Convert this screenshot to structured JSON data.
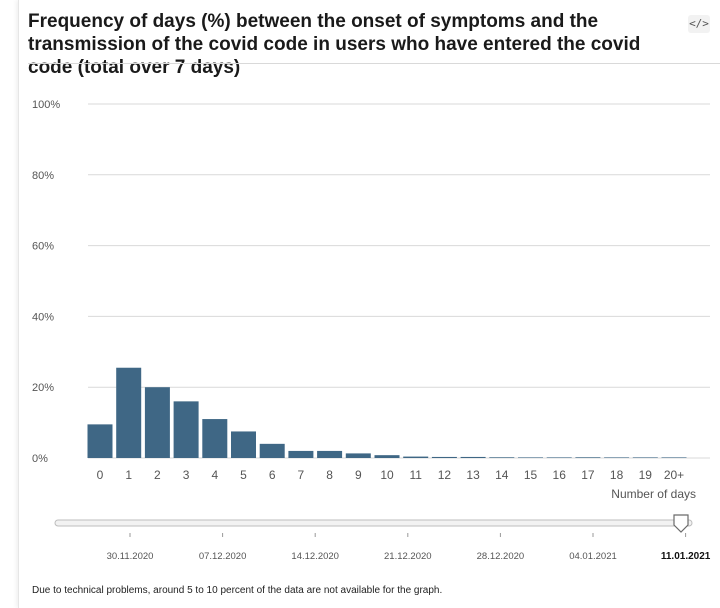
{
  "title": "Frequency of days (%) between the onset of symptoms and the transmission of the covid code in users who have entered the covid code (total over 7 days)",
  "embed_icon": "embed-code-icon",
  "embed_label": "</>",
  "footnote": "Due to technical problems, around 5 to 10 percent of the data are not available for the graph.",
  "colors": {
    "bar": "#3f6785",
    "grid": "#d9d9d9",
    "axis_text": "#555555",
    "slider_track": "#f2f2f2",
    "slider_border": "#bdbdbd"
  },
  "chart_data": {
    "type": "bar",
    "categories": [
      "0",
      "1",
      "2",
      "3",
      "4",
      "5",
      "6",
      "7",
      "8",
      "9",
      "10",
      "11",
      "12",
      "13",
      "14",
      "15",
      "16",
      "17",
      "18",
      "19",
      "20+"
    ],
    "values": [
      9.5,
      25.5,
      20.0,
      16.0,
      11.0,
      7.5,
      4.0,
      2.0,
      2.0,
      1.3,
      0.8,
      0.4,
      0.3,
      0.3,
      0.2,
      0.15,
      0.1,
      0.2,
      0.05,
      0.05,
      0.05
    ],
    "title": "Frequency of days (%) between the onset of symptoms and the transmission of the covid code in users who have entered the covid code (total over 7 days)",
    "xlabel": "Number of days",
    "ylabel": "",
    "ylim": [
      0,
      100
    ],
    "y_ticks": [
      "0%",
      "20%",
      "40%",
      "60%",
      "80%",
      "100%"
    ],
    "y_tick_values": [
      0,
      20,
      40,
      60,
      80,
      100
    ],
    "grid": true,
    "legend": "none"
  },
  "time_slider": {
    "dates": [
      "30.11.2020",
      "07.12.2020",
      "14.12.2020",
      "21.12.2020",
      "28.12.2020",
      "04.01.2021",
      "11.01.2021"
    ],
    "selected": "11.01.2021",
    "selected_index": 6
  }
}
